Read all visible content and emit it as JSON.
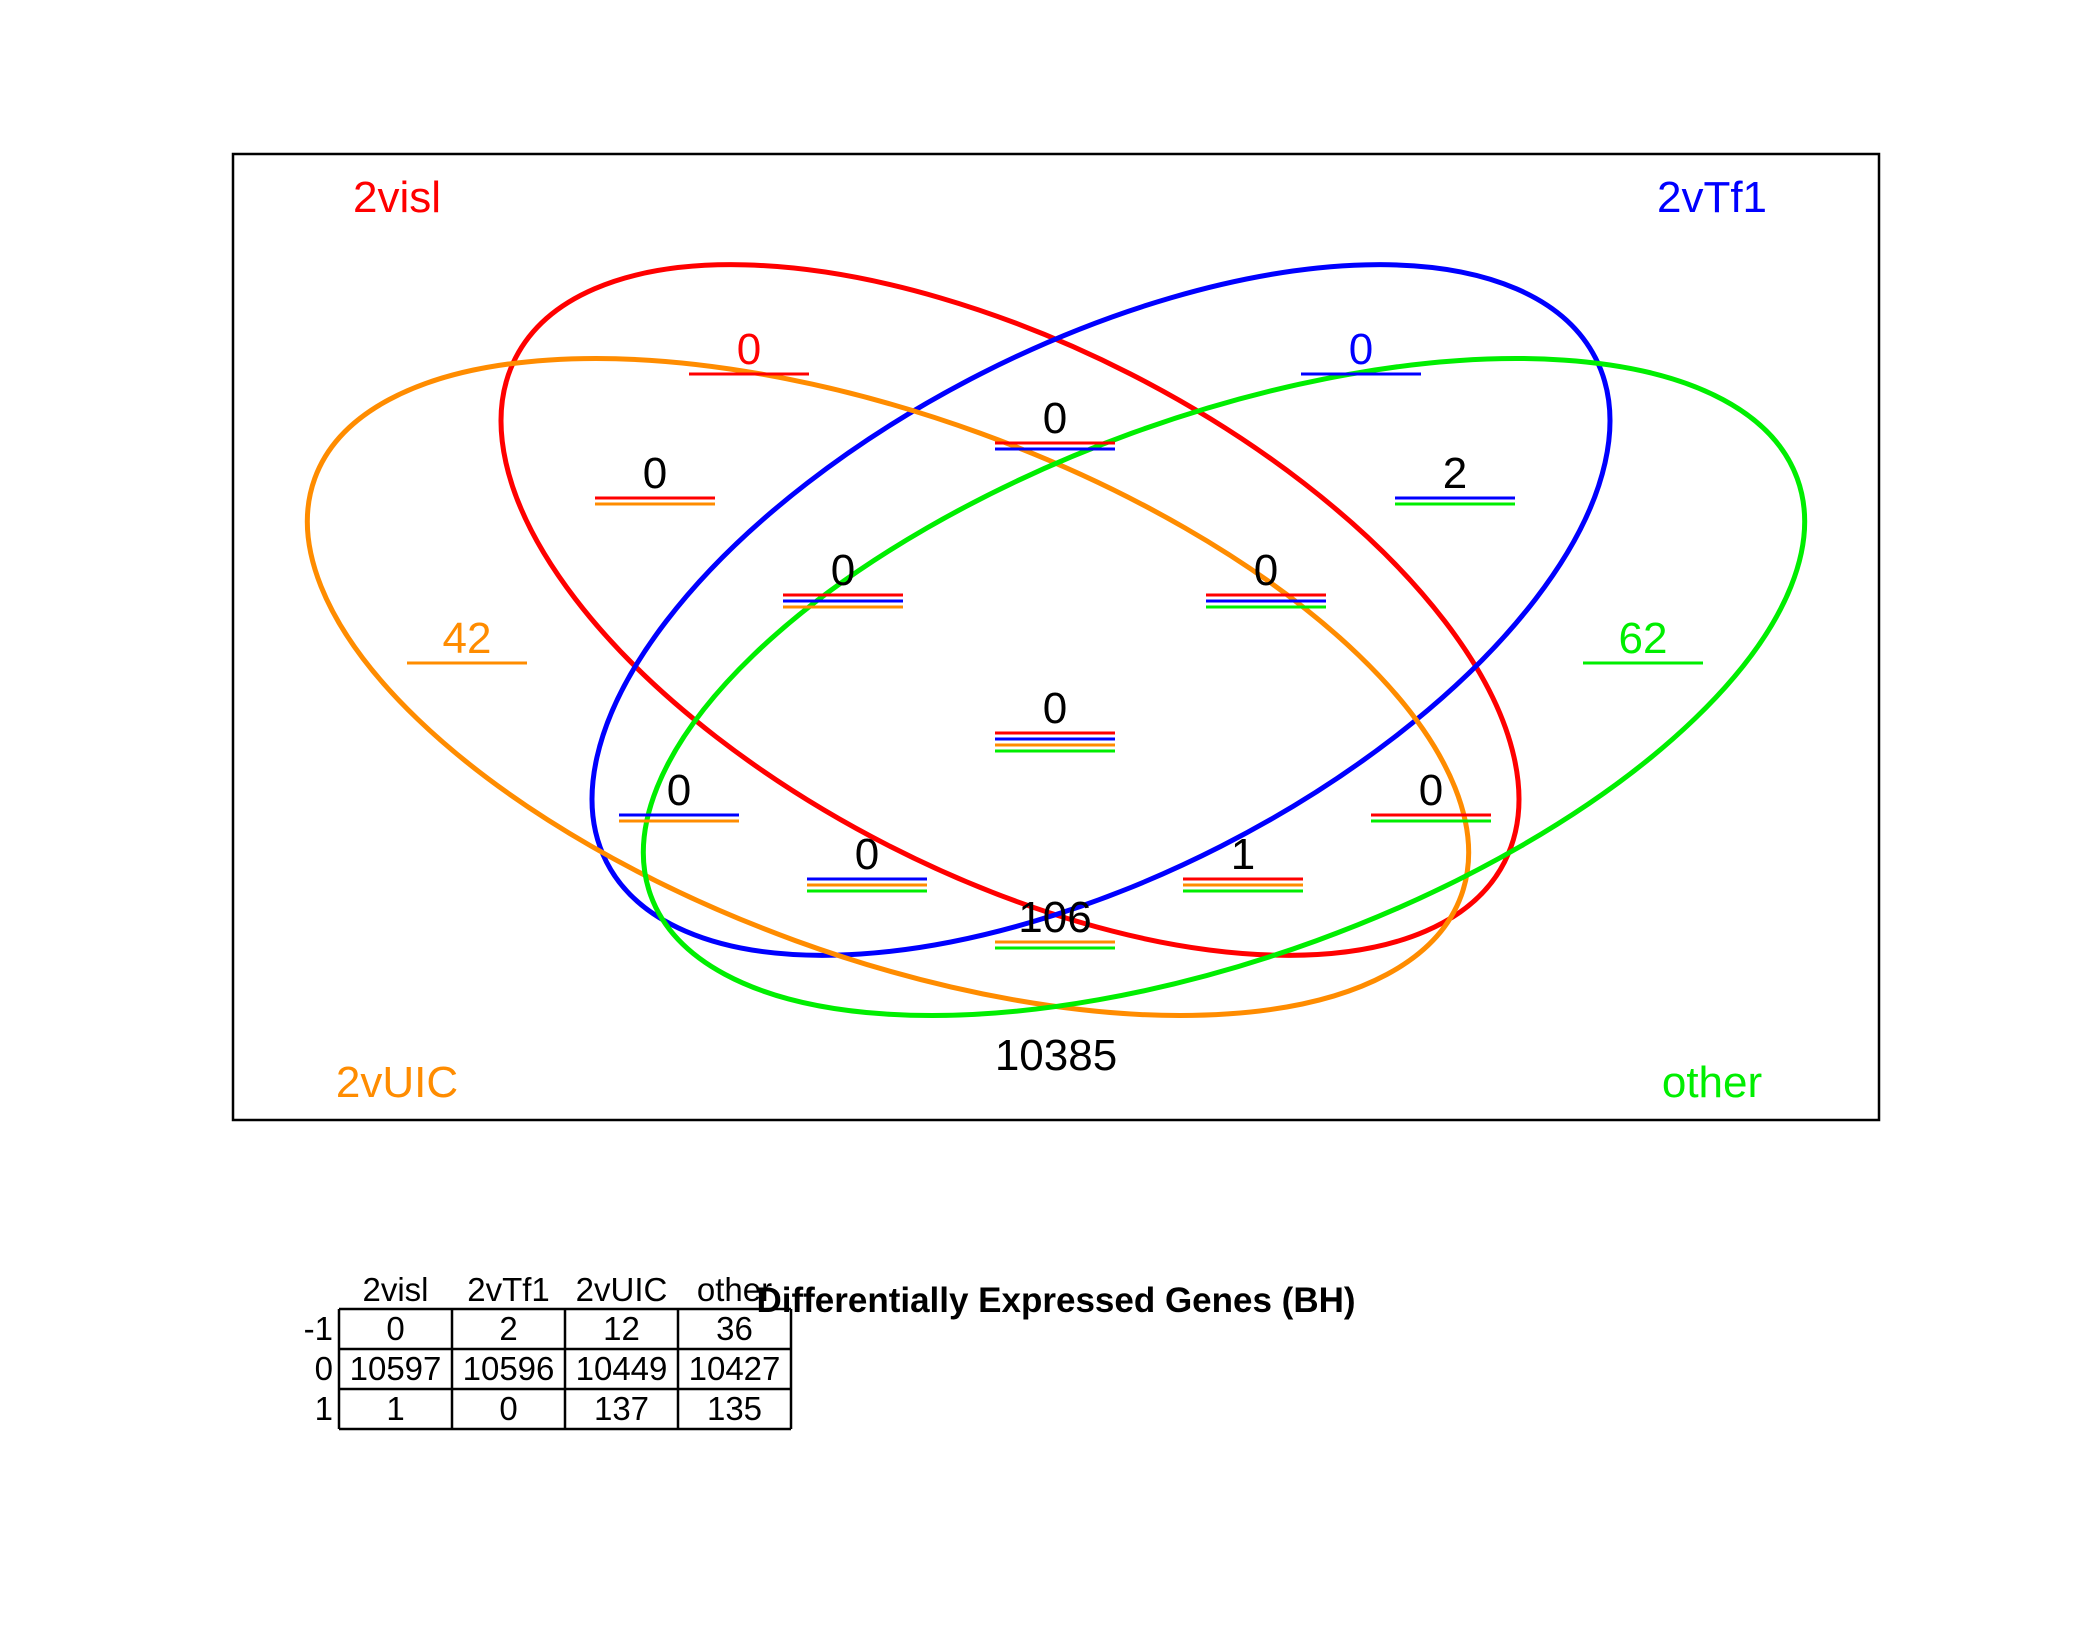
{
  "venn": {
    "sets": [
      {
        "id": "a",
        "name": "2visl",
        "color": "#ff0000"
      },
      {
        "id": "b",
        "name": "2vTf1",
        "color": "#0000ff"
      },
      {
        "id": "c",
        "name": "2vUIC",
        "color": "#ff8c00"
      },
      {
        "id": "d",
        "name": "other",
        "color": "#00ee00"
      }
    ],
    "regions": [
      {
        "sets": [
          "a"
        ],
        "count": "0"
      },
      {
        "sets": [
          "b"
        ],
        "count": "0"
      },
      {
        "sets": [
          "a",
          "b"
        ],
        "count": "0"
      },
      {
        "sets": [
          "a",
          "c"
        ],
        "count": "0"
      },
      {
        "sets": [
          "b",
          "d"
        ],
        "count": "2"
      },
      {
        "sets": [
          "c"
        ],
        "count": "42"
      },
      {
        "sets": [
          "d"
        ],
        "count": "62"
      },
      {
        "sets": [
          "a",
          "b",
          "c"
        ],
        "count": "0"
      },
      {
        "sets": [
          "a",
          "b",
          "d"
        ],
        "count": "0"
      },
      {
        "sets": [
          "a",
          "b",
          "c",
          "d"
        ],
        "count": "0"
      },
      {
        "sets": [
          "b",
          "c"
        ],
        "count": "0"
      },
      {
        "sets": [
          "a",
          "d"
        ],
        "count": "0"
      },
      {
        "sets": [
          "b",
          "c",
          "d"
        ],
        "count": "0"
      },
      {
        "sets": [
          "a",
          "c",
          "d"
        ],
        "count": "1"
      },
      {
        "sets": [
          "c",
          "d"
        ],
        "count": "106"
      }
    ],
    "outside_count": "10385"
  },
  "summary_table": {
    "title": "Differentially Expressed Genes (BH)",
    "columns": [
      "2visl",
      "2vTf1",
      "2vUIC",
      "other"
    ],
    "rows": [
      {
        "label": "-1",
        "values": [
          "0",
          "2",
          "12",
          "36"
        ]
      },
      {
        "label": "0",
        "values": [
          "10597",
          "10596",
          "10449",
          "10427"
        ]
      },
      {
        "label": "1",
        "values": [
          "1",
          "0",
          "137",
          "135"
        ]
      }
    ]
  }
}
